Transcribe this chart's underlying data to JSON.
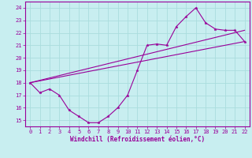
{
  "xlabel": "Windchill (Refroidissement éolien,°C)",
  "bg_color": "#c8eef0",
  "line_color": "#990099",
  "grid_color": "#aadddd",
  "xlim": [
    -0.5,
    22.5
  ],
  "ylim": [
    14.5,
    24.5
  ],
  "xticks": [
    0,
    1,
    2,
    3,
    4,
    5,
    6,
    7,
    8,
    9,
    10,
    11,
    12,
    13,
    14,
    15,
    16,
    17,
    18,
    19,
    20,
    21,
    22
  ],
  "yticks": [
    15,
    16,
    17,
    18,
    19,
    20,
    21,
    22,
    23,
    24
  ],
  "line1_x": [
    0,
    1,
    2,
    3,
    4,
    5,
    6,
    7,
    8,
    9,
    10,
    11,
    12,
    13,
    14,
    15,
    16,
    17,
    18,
    19,
    20,
    21,
    22
  ],
  "line1_y": [
    18.0,
    17.2,
    17.5,
    17.0,
    15.8,
    15.3,
    14.8,
    14.8,
    15.3,
    16.0,
    17.0,
    19.0,
    21.0,
    21.1,
    21.0,
    22.5,
    23.3,
    24.0,
    22.8,
    22.3,
    22.2,
    22.2,
    21.3
  ],
  "line2_x": [
    0,
    22
  ],
  "line2_y": [
    18.0,
    21.3
  ],
  "line3_x": [
    0,
    22
  ],
  "line3_y": [
    18.0,
    22.2
  ],
  "xlabel_fontsize": 5.5,
  "tick_fontsize": 5.0
}
